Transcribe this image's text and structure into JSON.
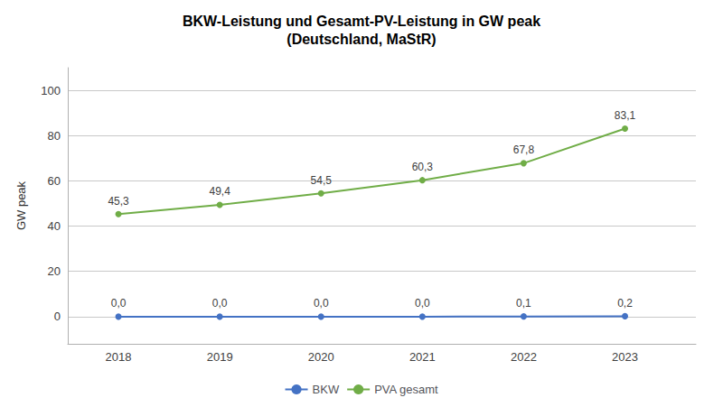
{
  "chart_data": {
    "type": "line",
    "title": "BKW-Leistung und Gesamt-PV-Leistung in GW peak\n(Deutschland, MaStR)",
    "ylabel": "GW peak",
    "x": [
      2018,
      2019,
      2020,
      2021,
      2022,
      2023
    ],
    "series": [
      {
        "name": "BKW",
        "color": "#4472C4",
        "values": [
          0.0,
          0.0,
          0.0,
          0.0,
          0.1,
          0.2
        ],
        "value_labels": [
          "0,0",
          "0,0",
          "0,0",
          "0,0",
          "0,1",
          "0,2"
        ]
      },
      {
        "name": "PVA gesamt",
        "color": "#70AD47",
        "values": [
          45.3,
          49.4,
          54.5,
          60.3,
          67.8,
          83.1
        ],
        "value_labels": [
          "45,3",
          "49,4",
          "54,5",
          "60,3",
          "67,8",
          "83,1"
        ]
      }
    ],
    "xlim": [
      2017.5,
      2023.7
    ],
    "xticks": [
      2018,
      2019,
      2020,
      2021,
      2022,
      2023
    ],
    "ylim": [
      -12,
      110
    ],
    "yticks": [
      0,
      20,
      40,
      60,
      80,
      100
    ],
    "grid": "y",
    "legend": "bottom",
    "data_labels": true,
    "marker": "circle"
  }
}
